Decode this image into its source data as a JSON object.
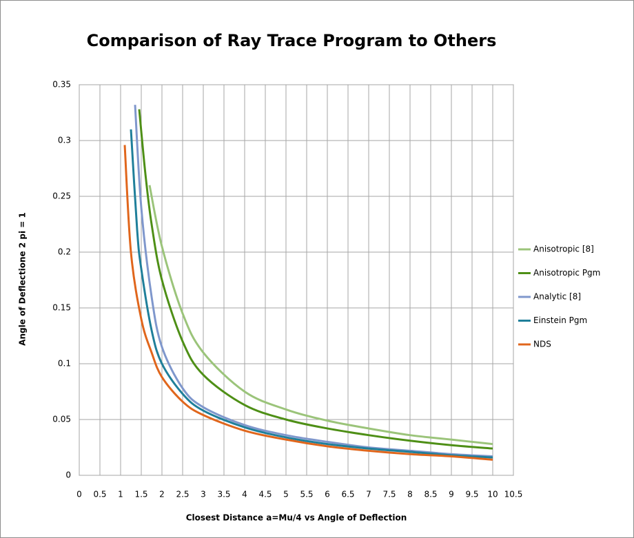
{
  "chart_data": {
    "type": "line",
    "title": "Comparison of  Ray Trace Program to Others",
    "x_label": "Closest Distance  a=Mu/4  vs  Angle of Deflection",
    "y_label": "Angle of Deflectione   2 pi = 1",
    "xlim": [
      0,
      10.5
    ],
    "xticks": [
      0,
      0.5,
      1,
      1.5,
      2,
      2.5,
      3,
      3.5,
      4,
      4.5,
      5,
      5.5,
      6,
      6.5,
      7,
      7.5,
      8,
      8.5,
      9,
      9.5,
      10,
      10.5
    ],
    "ylim": [
      0,
      0.35
    ],
    "yticks": [
      0,
      0.05,
      0.1,
      0.15,
      0.2,
      0.25,
      0.3,
      0.35
    ],
    "grid": true,
    "legend": "right",
    "series": [
      {
        "name": "Anisotropic [8]",
        "color": "#9bc47a",
        "x": [
          1.7,
          2,
          2.5,
          3,
          4,
          5,
          6,
          7,
          8,
          9,
          10
        ],
        "values": [
          0.26,
          0.205,
          0.145,
          0.11,
          0.075,
          0.059,
          0.049,
          0.042,
          0.036,
          0.032,
          0.028
        ]
      },
      {
        "name": "Anisotropic Pgm",
        "color": "#4e8f16",
        "x": [
          1.45,
          1.6,
          1.75,
          2,
          2.5,
          3,
          4,
          5,
          6,
          7,
          8,
          9,
          10
        ],
        "values": [
          0.328,
          0.27,
          0.225,
          0.175,
          0.12,
          0.09,
          0.063,
          0.05,
          0.042,
          0.036,
          0.031,
          0.027,
          0.024
        ]
      },
      {
        "name": "Analytic [8]",
        "color": "#7f97cc",
        "x": [
          1.35,
          1.5,
          1.75,
          2,
          2.5,
          3,
          4,
          5,
          6,
          7,
          8,
          9,
          10
        ],
        "values": [
          0.332,
          0.24,
          0.16,
          0.115,
          0.078,
          0.061,
          0.045,
          0.036,
          0.03,
          0.025,
          0.022,
          0.019,
          0.017
        ]
      },
      {
        "name": "Einstein Pgm",
        "color": "#1f7f9a",
        "x": [
          1.25,
          1.4,
          1.5,
          1.75,
          2,
          2.5,
          3,
          4,
          5,
          6,
          7,
          8,
          9,
          10
        ],
        "values": [
          0.31,
          0.22,
          0.185,
          0.13,
          0.1,
          0.073,
          0.058,
          0.043,
          0.034,
          0.028,
          0.024,
          0.021,
          0.018,
          0.016
        ]
      },
      {
        "name": "NDS",
        "color": "#e0661c",
        "x": [
          1.1,
          1.25,
          1.5,
          1.75,
          2,
          2.5,
          3,
          4,
          5,
          6,
          7,
          8,
          9,
          10
        ],
        "values": [
          0.296,
          0.2,
          0.14,
          0.11,
          0.088,
          0.066,
          0.054,
          0.04,
          0.032,
          0.026,
          0.022,
          0.019,
          0.017,
          0.014
        ]
      }
    ]
  }
}
